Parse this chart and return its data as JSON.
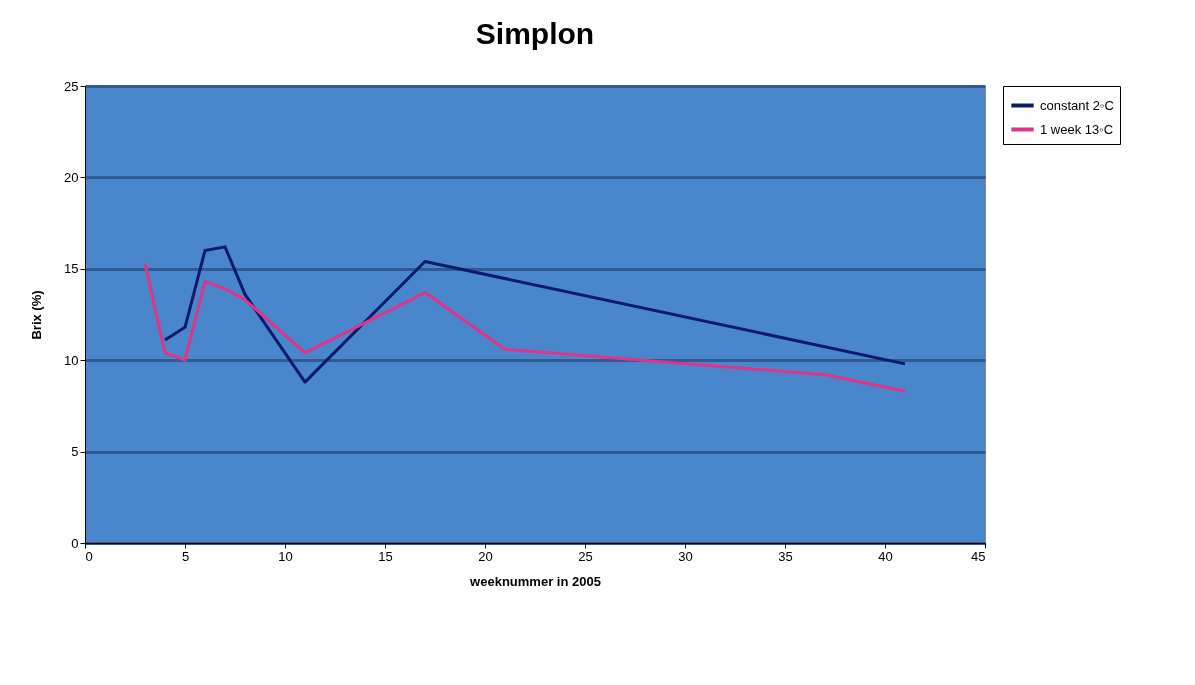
{
  "chart_data": {
    "type": "line",
    "title": "Simplon",
    "xlabel": "weeknummer in 2005",
    "ylabel": "Brix (%)",
    "xlim": [
      0,
      45
    ],
    "xticks": [
      0,
      5,
      10,
      15,
      20,
      25,
      30,
      35,
      40,
      45
    ],
    "ylim": [
      0,
      25
    ],
    "yticks": [
      0,
      5,
      10,
      15,
      20,
      25
    ],
    "grid": "y",
    "legend": "right",
    "line_style": "solid",
    "series": [
      {
        "name": "constant 2◦C",
        "color": "#0c1a6e",
        "x": [
          4,
          5,
          6,
          7,
          8,
          11,
          17,
          41
        ],
        "values": [
          11.1,
          11.8,
          16.0,
          16.2,
          13.6,
          8.8,
          15.4,
          9.8
        ]
      },
      {
        "name": "1 week 13◦C",
        "color": "#e0338a",
        "x": [
          3,
          4,
          5,
          6,
          7,
          8,
          11,
          17,
          21,
          37,
          41
        ],
        "values": [
          15.3,
          10.4,
          10.0,
          14.3,
          13.9,
          13.3,
          10.4,
          13.7,
          10.6,
          9.2,
          8.3
        ]
      }
    ]
  }
}
